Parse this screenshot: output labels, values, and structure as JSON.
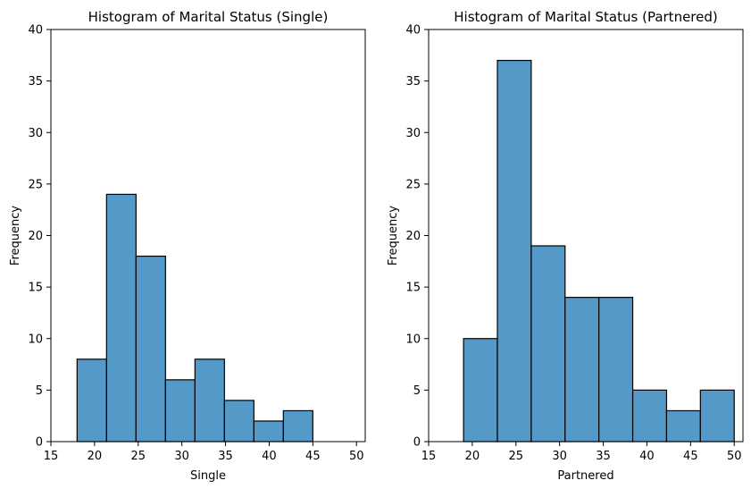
{
  "chart_data": [
    {
      "type": "histogram",
      "title": "Histogram of Marital Status (Single)",
      "xlabel": "Single",
      "ylabel": "Frequency",
      "xlim": [
        15,
        51
      ],
      "ylim": [
        0,
        40
      ],
      "xticks": [
        15,
        20,
        25,
        30,
        35,
        40,
        45,
        50
      ],
      "yticks": [
        0,
        5,
        10,
        15,
        20,
        25,
        30,
        35,
        40
      ],
      "bins": [
        18.0,
        21.375,
        24.75,
        28.125,
        31.5,
        34.875,
        38.25,
        41.625,
        45.0
      ],
      "values": [
        8,
        24,
        18,
        6,
        8,
        4,
        2,
        3
      ],
      "color": "#5499c7",
      "edgecolor": "#000000"
    },
    {
      "type": "histogram",
      "title": "Histogram of Marital Status (Partnered)",
      "xlabel": "Partnered",
      "ylabel": "Frequency",
      "xlim": [
        15,
        51
      ],
      "ylim": [
        0,
        40
      ],
      "xticks": [
        15,
        20,
        25,
        30,
        35,
        40,
        45,
        50
      ],
      "yticks": [
        0,
        5,
        10,
        15,
        20,
        25,
        30,
        35,
        40
      ],
      "bins": [
        19.0,
        22.875,
        26.75,
        30.625,
        34.5,
        38.375,
        42.25,
        46.125,
        50.0
      ],
      "values": [
        10,
        37,
        19,
        14,
        14,
        5,
        3,
        5
      ],
      "color": "#5499c7",
      "edgecolor": "#000000"
    }
  ]
}
